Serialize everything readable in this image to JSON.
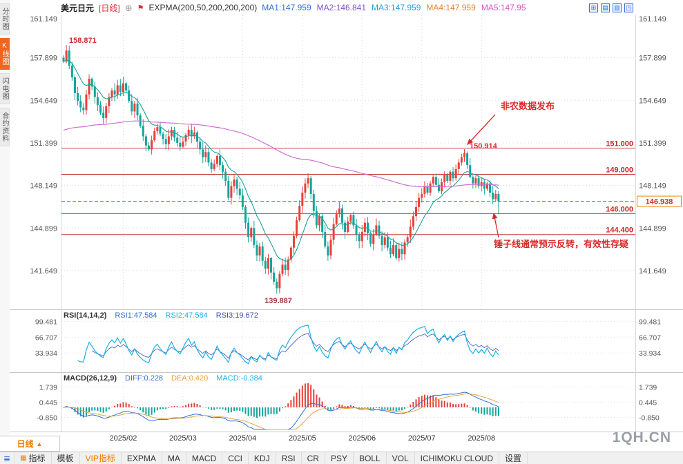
{
  "topbar": {
    "symbol": "美元日元",
    "period_tag": "[日线]",
    "collapse_glyph": "⊕",
    "flag_glyph": "⚑",
    "indicator_label": "EXPMA(200,50,200,200,200)",
    "ma_values": [
      {
        "text": "MA1:147.959",
        "color": "#2f6fd6"
      },
      {
        "text": "MA2:146.841",
        "color": "#7a52c7"
      },
      {
        "text": "MA3:147.959",
        "color": "#2e9bd6"
      },
      {
        "text": "MA4:147.959",
        "color": "#e8832a"
      },
      {
        "text": "MA5:147.95",
        "color": "#d557c8"
      }
    ],
    "right_icons": [
      {
        "name": "grid-layout-icon",
        "glyph": "⊞"
      },
      {
        "name": "chart-mode-icon",
        "glyph": "▤"
      },
      {
        "name": "split-view-icon",
        "glyph": "▥"
      },
      {
        "name": "fullscreen-icon",
        "glyph": "◳"
      }
    ]
  },
  "sidebar": {
    "tabs": [
      {
        "label": "分时图",
        "active": false
      },
      {
        "label": "K线图",
        "active": true
      },
      {
        "label": "闪电图",
        "active": false
      },
      {
        "label": "合约资料",
        "active": false
      }
    ]
  },
  "chart_data": {
    "type": "candlestick",
    "symbol": "美元日元",
    "period": "日线",
    "y_ticks": [
      161.149,
      157.899,
      154.649,
      151.399,
      148.149,
      144.899,
      141.649
    ],
    "levels": [
      151.0,
      149.0,
      146.0,
      144.4
    ],
    "last_price": 146.938,
    "open_first": 157.9,
    "ma_slow_start": 152.3,
    "closes": [
      157.6,
      158.45,
      157.3,
      156.4,
      155.2,
      154.6,
      154.1,
      153.9,
      155.1,
      156.3,
      155.7,
      154.9,
      154.3,
      153.7,
      153.3,
      154.2,
      154.9,
      155.4,
      155.1,
      155.8,
      155.3,
      155.95,
      155.4,
      154.6,
      153.8,
      154.4,
      153.5,
      152.7,
      151.9,
      151.2,
      150.9,
      151.6,
      152.3,
      152.6,
      152.1,
      151.7,
      151.3,
      151.9,
      152.4,
      151.8,
      151.4,
      151.1,
      151.5,
      152.0,
      152.4,
      151.9,
      152.2,
      151.5,
      150.9,
      150.3,
      150.7,
      149.9,
      149.4,
      149.8,
      150.4,
      149.7,
      149.2,
      148.5,
      147.2,
      148.1,
      148.6,
      147.9,
      147.4,
      146.5,
      145.3,
      144.2,
      144.9,
      143.6,
      142.8,
      143.5,
      142.4,
      141.8,
      142.6,
      141.5,
      140.8,
      140.3,
      141.4,
      142.1,
      141.7,
      142.5,
      143.4,
      144.3,
      145.5,
      146.6,
      147.6,
      148.3,
      148.7,
      147.5,
      146.2,
      145.1,
      145.8,
      144.6,
      143.5,
      142.8,
      144.0,
      145.2,
      146.0,
      146.4,
      145.3,
      144.6,
      145.4,
      145.9,
      145.1,
      144.4,
      143.9,
      144.6,
      145.3,
      144.5,
      143.7,
      144.4,
      145.1,
      144.3,
      143.6,
      144.2,
      143.4,
      142.9,
      143.6,
      142.6,
      143.3,
      142.9,
      143.8,
      144.2,
      145.0,
      145.8,
      146.5,
      147.2,
      147.5,
      148.1,
      147.6,
      148.3,
      148.8,
      148.2,
      147.7,
      148.4,
      149.0,
      148.5,
      149.2,
      148.7,
      149.4,
      149.9,
      150.3,
      150.6,
      149.7,
      148.8,
      148.3,
      148.7,
      148.1,
      148.4,
      147.9,
      148.3,
      147.6,
      147.1,
      147.5,
      146.938
    ],
    "overrides": {
      "1": {
        "high": 158.871
      },
      "75": {
        "low": 139.887
      },
      "141": {
        "high": 150.914
      },
      "153": {
        "low": 145.95
      }
    },
    "months": [
      {
        "label": "2025/02",
        "index": 21
      },
      {
        "label": "2025/03",
        "index": 42
      },
      {
        "label": "2025/04",
        "index": 63
      },
      {
        "label": "2025/05",
        "index": 84
      },
      {
        "label": "2025/06",
        "index": 105
      },
      {
        "label": "2025/07",
        "index": 126
      },
      {
        "label": "2025/08",
        "index": 147
      }
    ],
    "annotations": {
      "first_high": "158.871",
      "news": "非农数据发布",
      "peak": "150.914",
      "low": "139.887",
      "hammer_note": "锤子线通常预示反转，有效性存疑"
    },
    "colors": {
      "up": "#e8403a",
      "down": "#13a49a",
      "ma_fast": "#13a49a",
      "ma_slow": "#cf6fd0",
      "level": "#c93a3a",
      "last_price_line": "#4a7bd4",
      "last_price_box": "#f08300",
      "annotation": "#d92b2b"
    }
  },
  "rsi": {
    "title": "RSI(14,14,2)",
    "values": [
      {
        "text": "RSI1:47.584",
        "color": "#2f6fd6"
      },
      {
        "text": "RSI2:47.584",
        "color": "#1ab0e6"
      },
      {
        "text": "RSI3:19.672",
        "color": "#3f51b5"
      }
    ],
    "ticks": [
      99.481,
      66.707,
      33.934
    ]
  },
  "macd": {
    "title": "MACD(26,12,9)",
    "values": [
      {
        "text": "DIFF:0.228",
        "color": "#2f6fd6"
      },
      {
        "text": "DEA:0.420",
        "color": "#e8a33d"
      },
      {
        "text": "MACD:-0.384",
        "color": "#1ab0e6"
      }
    ],
    "ticks": [
      1.739,
      0.445,
      -0.85
    ]
  },
  "axis": {
    "period": "日线",
    "arrow": "▲"
  },
  "toolbar": {
    "menu_icon_glyph": "≣",
    "items": [
      {
        "label": "指标",
        "icon": "▦"
      },
      {
        "label": "模板"
      },
      {
        "label": "VIP指标",
        "highlight": true
      },
      {
        "label": "EXPMA"
      },
      {
        "label": "MA"
      },
      {
        "label": "MACD"
      },
      {
        "label": "CCI"
      },
      {
        "label": "KDJ"
      },
      {
        "label": "RSI"
      },
      {
        "label": "CR"
      },
      {
        "label": "PSY"
      },
      {
        "label": "BOLL"
      },
      {
        "label": "VOL"
      },
      {
        "label": "ICHIMOKU CLOUD"
      },
      {
        "label": "设置"
      }
    ]
  },
  "watermark": "1QH.CN"
}
